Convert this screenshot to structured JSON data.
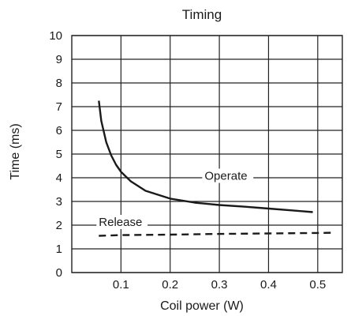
{
  "chart_data": {
    "type": "line",
    "title": "Timing",
    "xlabel": "Coil power (W)",
    "ylabel": "Time (ms)",
    "xlim": [
      0,
      0.55
    ],
    "ylim": [
      0,
      10
    ],
    "xticks": [
      0.1,
      0.2,
      0.3,
      0.4,
      0.5
    ],
    "xtick_labels": [
      "0.1",
      "0.2",
      "0.3",
      "0.4",
      "0.5"
    ],
    "yticks": [
      0,
      1,
      2,
      3,
      4,
      5,
      6,
      7,
      8,
      9,
      10
    ],
    "ytick_labels": [
      "0",
      "1",
      "2",
      "3",
      "4",
      "5",
      "6",
      "7",
      "8",
      "9",
      "10"
    ],
    "grid": true,
    "series": [
      {
        "name": "Operate",
        "style": "solid",
        "x": [
          0.055,
          0.06,
          0.07,
          0.08,
          0.09,
          0.1,
          0.12,
          0.15,
          0.2,
          0.25,
          0.3,
          0.35,
          0.4,
          0.45,
          0.49
        ],
        "y": [
          7.25,
          6.4,
          5.5,
          4.95,
          4.55,
          4.25,
          3.85,
          3.45,
          3.12,
          2.95,
          2.85,
          2.78,
          2.7,
          2.62,
          2.55
        ]
      },
      {
        "name": "Release",
        "style": "dashed",
        "x": [
          0.055,
          0.1,
          0.2,
          0.3,
          0.4,
          0.5,
          0.53
        ],
        "y": [
          1.55,
          1.58,
          1.6,
          1.63,
          1.65,
          1.67,
          1.68
        ]
      }
    ],
    "annotations": [
      {
        "text": "Operate",
        "x": 0.27,
        "y": 3.95
      },
      {
        "text": "Release",
        "x": 0.055,
        "y": 2.0
      }
    ]
  }
}
